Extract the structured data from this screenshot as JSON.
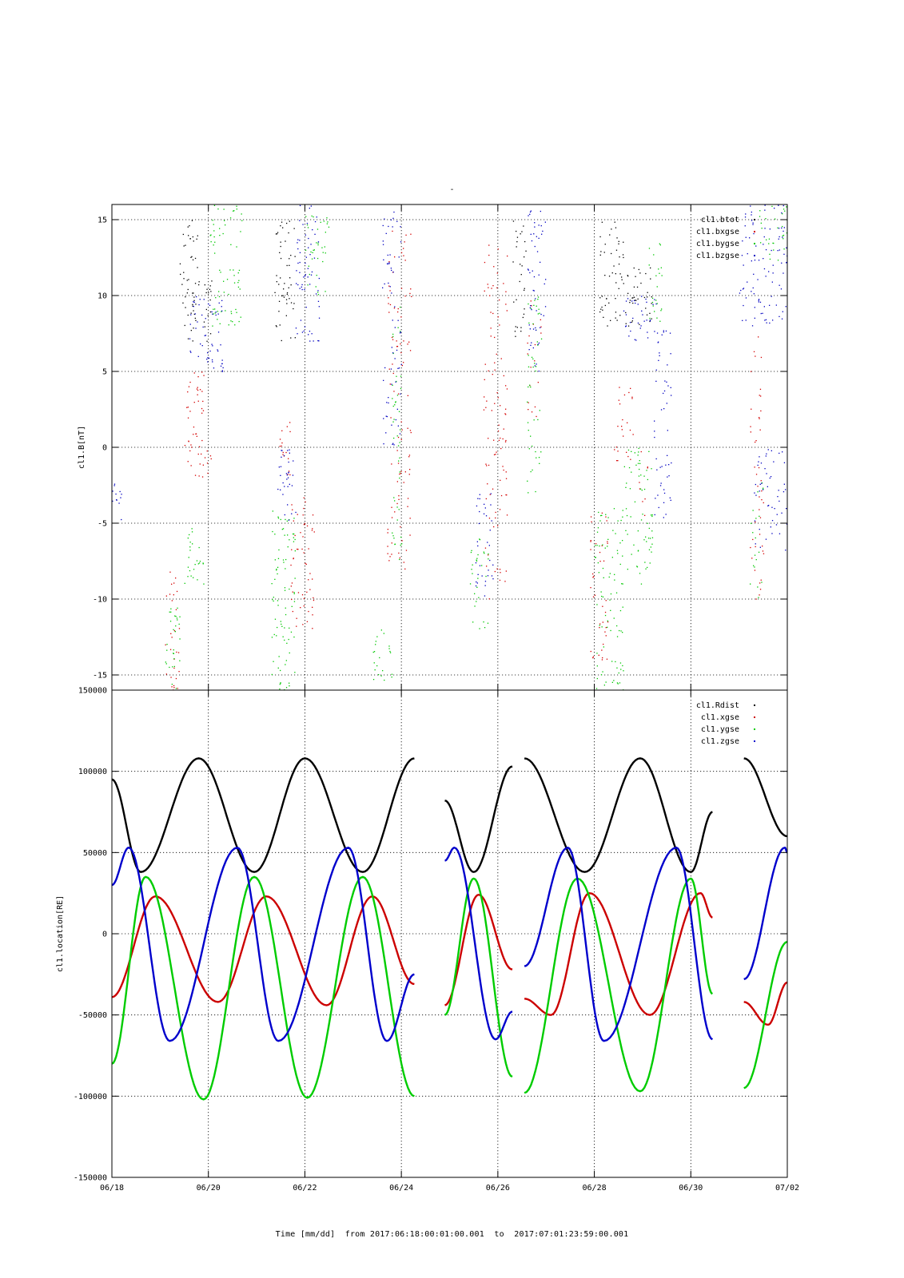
{
  "page": {
    "title": "-"
  },
  "x_caption": {
    "prefix": "Time [mm/dd]",
    "from_word": "from",
    "start": "2017:06:18:00:01:00.001",
    "to_word": "to",
    "end": "2017:07:01:23:59:00.001"
  },
  "chart_data": [
    {
      "type": "scatter",
      "ylabel": "cl1.B[nT]",
      "xlabel": "",
      "x_unit": "days since 06/18",
      "xlim": [
        0,
        14
      ],
      "ylim": [
        -16,
        16
      ],
      "yticks": [
        -15,
        -10,
        -5,
        0,
        5,
        10,
        15
      ],
      "ytick_labels": [
        "-15",
        "-10",
        "-5",
        "0",
        "5",
        "10",
        "15"
      ],
      "grid": true,
      "legend_position": "top-right",
      "series": [
        {
          "name": "cl1.btot",
          "color": "#000000",
          "clusters": [
            [
              1.4,
              1.8,
              7,
              15,
              0.4
            ],
            [
              1.9,
              2.1,
              7,
              11,
              0.5
            ],
            [
              3.35,
              3.8,
              7,
              15,
              0.35
            ],
            [
              8.3,
              8.6,
              7,
              15,
              0.3
            ],
            [
              10.1,
              10.6,
              8,
              15,
              0.35
            ],
            [
              10.6,
              11.2,
              8,
              12,
              0.4
            ]
          ]
        },
        {
          "name": "cl1.bxgse",
          "color": "#d40000",
          "clusters": [
            [
              1.1,
              1.4,
              -16,
              -8,
              0.3
            ],
            [
              1.5,
              1.9,
              -2,
              5,
              0.4
            ],
            [
              1.9,
              2.05,
              -2,
              0,
              0.5
            ],
            [
              3.45,
              3.7,
              -2,
              2,
              0.4
            ],
            [
              3.7,
              4.2,
              -12,
              -3,
              0.3
            ],
            [
              5.7,
              6.2,
              -8,
              15,
              0.2
            ],
            [
              7.7,
              8.2,
              -10,
              14,
              0.2
            ],
            [
              8.6,
              8.9,
              2,
              10,
              0.2
            ],
            [
              9.9,
              10.3,
              -14,
              -4,
              0.25
            ],
            [
              10.4,
              10.8,
              -1,
              4,
              0.3
            ],
            [
              10.9,
              11.1,
              -5,
              0,
              0.2
            ],
            [
              13.2,
              13.5,
              -10,
              8,
              0.2
            ]
          ]
        },
        {
          "name": "cl1.bygse",
          "color": "#00c800",
          "clusters": [
            [
              1.1,
              1.4,
              -16,
              -10,
              0.4
            ],
            [
              1.5,
              1.9,
              -9,
              -5,
              0.4
            ],
            [
              2.0,
              2.7,
              8,
              16,
              0.3
            ],
            [
              3.3,
              3.8,
              -16,
              -4,
              0.35
            ],
            [
              4.0,
              4.5,
              10,
              16,
              0.3
            ],
            [
              5.4,
              5.8,
              -16,
              -12,
              0.35
            ],
            [
              5.8,
              6.0,
              -8,
              10,
              0.3
            ],
            [
              7.4,
              7.8,
              -12,
              -6,
              0.3
            ],
            [
              8.6,
              8.9,
              -3,
              10,
              0.3
            ],
            [
              10.0,
              10.6,
              -16,
              -4,
              0.3
            ],
            [
              10.6,
              11.2,
              -9,
              0,
              0.3
            ],
            [
              11.1,
              11.4,
              8,
              14,
              0.3
            ],
            [
              13.4,
              14.0,
              12,
              16,
              0.3
            ],
            [
              13.2,
              13.5,
              -10,
              -2,
              0.2
            ]
          ]
        },
        {
          "name": "cl1.bzgse",
          "color": "#0000c0",
          "clusters": [
            [
              0,
              0.2,
              -5,
              -2,
              0.5
            ],
            [
              1.6,
              2.3,
              5,
              10,
              0.4
            ],
            [
              3.4,
              3.8,
              -5,
              0,
              0.4
            ],
            [
              3.8,
              4.3,
              7,
              16,
              0.35
            ],
            [
              5.6,
              6.0,
              0,
              16,
              0.25
            ],
            [
              7.5,
              7.9,
              -10,
              -3,
              0.3
            ],
            [
              8.6,
              9.0,
              5,
              16,
              0.3
            ],
            [
              10.6,
              11.3,
              7,
              10,
              0.4
            ],
            [
              11.2,
              11.6,
              -5,
              8,
              0.25
            ],
            [
              13.0,
              14.0,
              8,
              16,
              0.3
            ],
            [
              13.3,
              14.0,
              -7,
              0,
              0.25
            ]
          ]
        }
      ]
    },
    {
      "type": "line",
      "ylabel": "cl1.location[RE]",
      "xlabel": "",
      "x_unit": "days since 06/18",
      "xlim": [
        0,
        14
      ],
      "ylim": [
        -150000,
        150000
      ],
      "yticks": [
        -150000,
        -100000,
        -50000,
        0,
        50000,
        100000,
        150000
      ],
      "ytick_labels": [
        "-150000",
        "-100000",
        "-50000",
        "0",
        "50000",
        "100000",
        "150000"
      ],
      "xticks": [
        0,
        2,
        4,
        6,
        8,
        10,
        12,
        14
      ],
      "xtick_labels": [
        "06/18",
        "06/20",
        "06/22",
        "06/24",
        "06/26",
        "06/28",
        "06/30",
        "07/02"
      ],
      "grid": true,
      "legend_position": "top-right",
      "data_segments": [
        [
          0,
          6.27
        ],
        [
          6.9,
          8.3
        ],
        [
          8.55,
          12.45
        ],
        [
          13.1,
          14
        ]
      ],
      "series": [
        {
          "name": "cl1.Rdist",
          "color": "#000000",
          "points": [
            [
              0,
              95000
            ],
            [
              0.6,
              38000
            ],
            [
              1.8,
              108000
            ],
            [
              2.95,
              38000
            ],
            [
              4.0,
              108000
            ],
            [
              5.2,
              38000
            ],
            [
              6.27,
              108000
            ],
            [
              6.9,
              82000
            ],
            [
              7.5,
              38000
            ],
            [
              8.3,
              103000
            ],
            [
              8.55,
              108000
            ],
            [
              9.8,
              38000
            ],
            [
              10.95,
              108000
            ],
            [
              12.0,
              38000
            ],
            [
              12.45,
              75000
            ],
            [
              13.1,
              108000
            ],
            [
              14,
              60000
            ]
          ]
        },
        {
          "name": "cl1.xgse",
          "color": "#cc0000",
          "points": [
            [
              0,
              -39000
            ],
            [
              0.9,
              23000
            ],
            [
              2.2,
              -42000
            ],
            [
              3.2,
              23000
            ],
            [
              4.45,
              -44000
            ],
            [
              5.4,
              23000
            ],
            [
              6.27,
              -31000
            ],
            [
              6.9,
              -44000
            ],
            [
              7.6,
              24000
            ],
            [
              8.3,
              -22000
            ],
            [
              8.55,
              -40000
            ],
            [
              9.1,
              -50000
            ],
            [
              9.9,
              25000
            ],
            [
              11.15,
              -50000
            ],
            [
              12.2,
              25000
            ],
            [
              12.45,
              10000
            ],
            [
              13.1,
              -42000
            ],
            [
              13.6,
              -56000
            ],
            [
              14,
              -30000
            ]
          ]
        },
        {
          "name": "cl1.ygse",
          "color": "#00cc00",
          "points": [
            [
              0,
              -80000
            ],
            [
              0.7,
              35000
            ],
            [
              1.9,
              -102000
            ],
            [
              2.95,
              35000
            ],
            [
              4.05,
              -101000
            ],
            [
              5.2,
              35000
            ],
            [
              6.27,
              -100000
            ],
            [
              6.9,
              -50000
            ],
            [
              7.5,
              34000
            ],
            [
              8.3,
              -88000
            ],
            [
              8.55,
              -98000
            ],
            [
              9.65,
              34000
            ],
            [
              10.95,
              -97000
            ],
            [
              12.0,
              34000
            ],
            [
              12.45,
              -37000
            ],
            [
              13.1,
              -95000
            ],
            [
              14,
              -5000
            ]
          ]
        },
        {
          "name": "cl1.zgse",
          "color": "#0000cc",
          "points": [
            [
              0,
              30000
            ],
            [
              0.35,
              53000
            ],
            [
              1.2,
              -66000
            ],
            [
              2.6,
              53000
            ],
            [
              3.45,
              -66000
            ],
            [
              4.9,
              53000
            ],
            [
              5.7,
              -66000
            ],
            [
              6.27,
              -25000
            ],
            [
              6.9,
              45000
            ],
            [
              7.1,
              53000
            ],
            [
              7.95,
              -65000
            ],
            [
              8.3,
              -48000
            ],
            [
              8.55,
              -20000
            ],
            [
              9.45,
              53000
            ],
            [
              10.2,
              -66000
            ],
            [
              11.7,
              53000
            ],
            [
              12.45,
              -65000
            ],
            [
              13.1,
              -28000
            ],
            [
              13.95,
              53000
            ],
            [
              14,
              50000
            ]
          ]
        }
      ]
    }
  ]
}
